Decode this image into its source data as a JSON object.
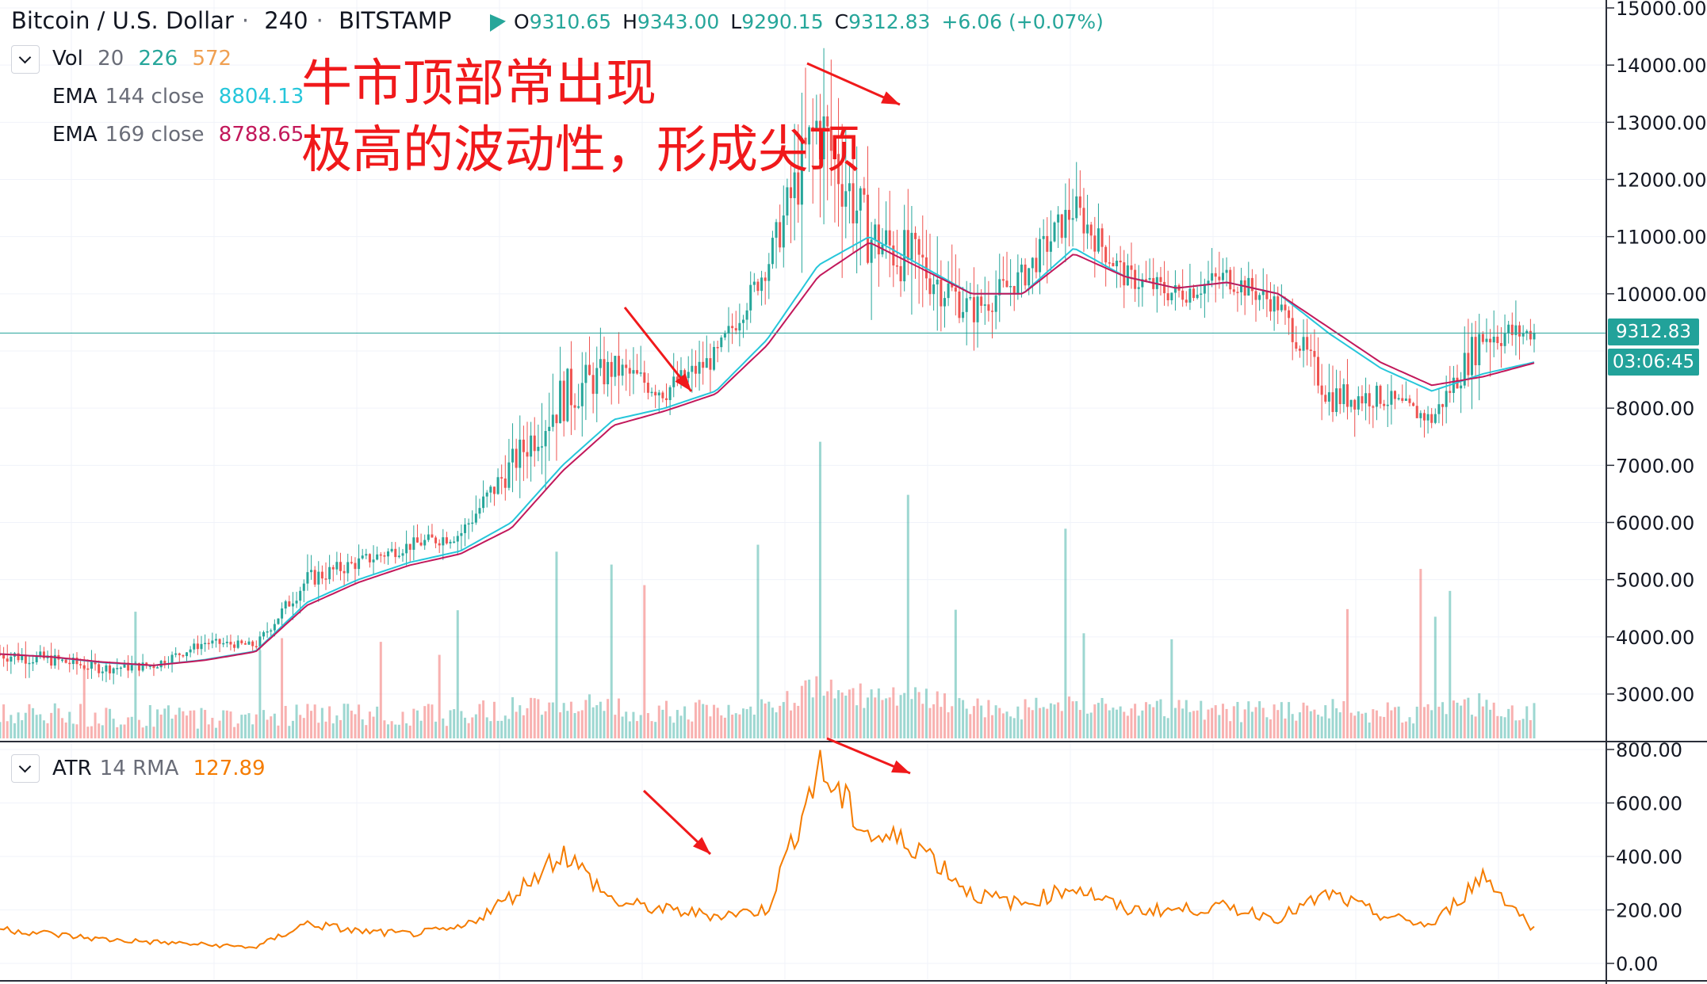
{
  "header": {
    "symbol": "Bitcoin / U.S. Dollar",
    "sep1": "·",
    "interval": "240",
    "sep2": "·",
    "exchange": "BITSTAMP",
    "ohlc": {
      "o_label": "O",
      "o": "9310.65",
      "h_label": "H",
      "h": "9343.00",
      "l_label": "L",
      "l": "9290.15",
      "c_label": "C",
      "c": "9312.83",
      "change": "+6.06 (+0.07%)"
    }
  },
  "indicators": {
    "vol": {
      "name": "Vol",
      "length": "20",
      "value1": "226",
      "value2": "572"
    },
    "ema144": {
      "name": "EMA",
      "params": "144 close",
      "value": "8804.13",
      "color": "#26c6da"
    },
    "ema169": {
      "name": "EMA",
      "params": "169 close",
      "value": "8788.65",
      "color": "#c2185b"
    },
    "atr": {
      "name": "ATR",
      "params": "14 RMA",
      "value": "127.89",
      "color": "#f57c00"
    }
  },
  "annotation": {
    "line1": "牛市顶部常出现",
    "line2": "极高的波动性，形成尖顶",
    "color": "#f0191b"
  },
  "price_axis": {
    "ticks": [
      "15000.00",
      "14000.00",
      "13000.00",
      "12000.00",
      "11000.00",
      "10000.00",
      "8000.00",
      "7000.00",
      "6000.00",
      "5000.00",
      "4000.00",
      "3000.00"
    ],
    "last_price": "9312.83",
    "countdown": "03:06:45"
  },
  "atr_axis": {
    "ticks": [
      "800.00",
      "600.00",
      "400.00",
      "200.00",
      "0.00"
    ]
  },
  "colors": {
    "up": "#26a69a",
    "down": "#ef5350",
    "ema144": "#26c6da",
    "ema169": "#c2185b",
    "atr": "#f57c00",
    "annotation": "#f0191b",
    "last_price": "#22a29a"
  },
  "chart_data": {
    "type": "line",
    "title": "Bitcoin / U.S. Dollar · 240 · BITSTAMP",
    "xlabel": "",
    "ylabel": "",
    "ylim": [
      2300,
      15000
    ],
    "note_scale": "price panel",
    "x": [
      0,
      10,
      20,
      30,
      40,
      50,
      60,
      70,
      80,
      90,
      100,
      110,
      120,
      130,
      140,
      150,
      160,
      170,
      180,
      190,
      200,
      210,
      220,
      230,
      240,
      250,
      260,
      270,
      280,
      290,
      300
    ],
    "series": [
      {
        "name": "Price",
        "values": [
          3700,
          3600,
          3450,
          3500,
          3900,
          3850,
          5000,
          5300,
          5600,
          5800,
          7000,
          8200,
          8700,
          8300,
          8900,
          10500,
          13000,
          11000,
          10500,
          9700,
          10300,
          11500,
          10300,
          10000,
          10300,
          9800,
          8200,
          8200,
          7800,
          9300,
          9312
        ]
      },
      {
        "name": "EMA 144 close",
        "values": [
          3700,
          3650,
          3550,
          3500,
          3600,
          3750,
          4600,
          5000,
          5300,
          5500,
          6000,
          7000,
          7800,
          8000,
          8300,
          9200,
          10500,
          11000,
          10500,
          10000,
          10000,
          10800,
          10300,
          10100,
          10200,
          10000,
          9300,
          8700,
          8300,
          8600,
          8804
        ]
      },
      {
        "name": "EMA 169 close",
        "values": [
          3700,
          3650,
          3560,
          3500,
          3590,
          3740,
          4550,
          4950,
          5250,
          5450,
          5900,
          6900,
          7700,
          7950,
          8250,
          9100,
          10300,
          10900,
          10450,
          10000,
          10000,
          10700,
          10300,
          10100,
          10200,
          10000,
          9400,
          8800,
          8400,
          8550,
          8789
        ]
      }
    ],
    "atr": {
      "name": "ATR 14 RMA",
      "ylim": [
        0,
        800
      ],
      "values": [
        130,
        110,
        90,
        80,
        70,
        60,
        150,
        120,
        110,
        130,
        250,
        420,
        230,
        200,
        180,
        200,
        730,
        480,
        440,
        260,
        220,
        290,
        200,
        200,
        210,
        170,
        260,
        180,
        140,
        330,
        128
      ]
    },
    "volume": {
      "name": "Vol 20",
      "ylim": [
        0,
        25
      ]
    }
  }
}
